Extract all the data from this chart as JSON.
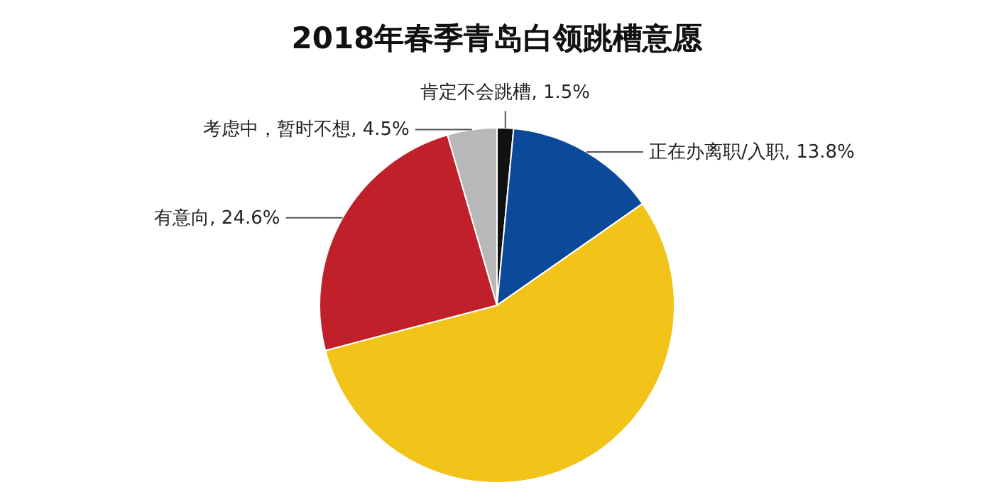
{
  "chart_data": {
    "type": "pie",
    "title": "2018年春季青岛白领跳槽意愿",
    "categories": [
      "肯定不会跳槽",
      "正在办离职/入职",
      null,
      "有意向",
      "考虑中，暂时不想"
    ],
    "values": [
      1.5,
      13.8,
      55.6,
      24.6,
      4.5
    ],
    "colors": [
      "#111111",
      "#0b4a9b",
      "#f2c318",
      "#c0202a",
      "#b8b8ba"
    ],
    "value_labels": [
      "1.5%",
      "13.8%",
      null,
      "24.6%",
      "4.5%"
    ]
  }
}
